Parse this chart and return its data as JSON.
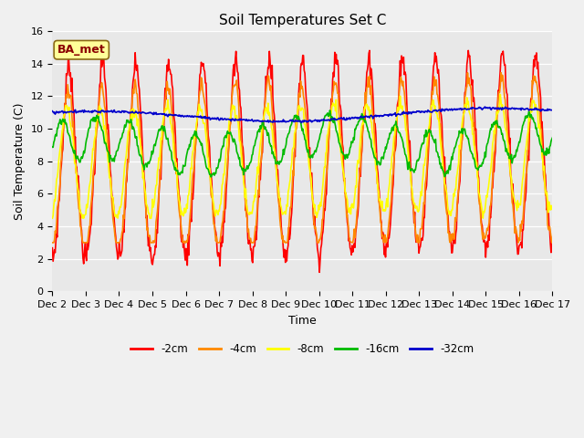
{
  "title": "Soil Temperatures Set C",
  "xlabel": "Time",
  "ylabel": "Soil Temperature (C)",
  "ylim": [
    0,
    16
  ],
  "annotation": "BA_met",
  "legend_labels": [
    "-2cm",
    "-4cm",
    "-8cm",
    "-16cm",
    "-32cm"
  ],
  "legend_colors": [
    "#ff0000",
    "#ff8800",
    "#ffff00",
    "#00bb00",
    "#0000cc"
  ],
  "xtick_labels": [
    "Dec 2",
    "Dec 3",
    "Dec 4",
    "Dec 5",
    "Dec 6",
    "Dec 7",
    "Dec 8",
    "Dec 9",
    "Dec 10",
    "Dec 11",
    "Dec 12",
    "Dec 13",
    "Dec 14",
    "Dec 15",
    "Dec 16",
    "Dec 17"
  ],
  "bg_color": "#e8e8e8",
  "plot_bg": "#f0f0f0",
  "grid_color": "#ffffff",
  "title_fontsize": 11,
  "label_fontsize": 9,
  "tick_fontsize": 8
}
